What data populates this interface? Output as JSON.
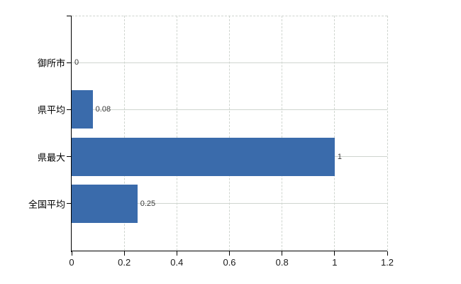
{
  "chart_data": {
    "type": "bar",
    "orientation": "horizontal",
    "title": "",
    "xlabel": "",
    "ylabel": "",
    "categories": [
      "御所市",
      "県平均",
      "県最大",
      "全国平均"
    ],
    "values": [
      0,
      0.08,
      1,
      0.25
    ],
    "value_labels": [
      "0",
      "0.08",
      "1",
      "0.25"
    ],
    "xlim": [
      0,
      1.2
    ],
    "xticks": [
      0,
      0.2,
      0.4,
      0.6,
      0.8,
      1,
      1.2
    ],
    "xtick_labels": [
      "0",
      "0.2",
      "0.4",
      "0.6",
      "0.8",
      "1",
      "1.2"
    ],
    "grid": true,
    "grid_horizontal_style": "solid",
    "grid_vertical_style": "dashed",
    "legend": false,
    "colors": {
      "bar": "#3a6bab",
      "grid": "#cfd5cf",
      "axis": "#000000",
      "category_label": "#000000",
      "tick_label": "#1a1a1a",
      "value_label": "#3a3a3a",
      "background": "#ffffff"
    }
  }
}
